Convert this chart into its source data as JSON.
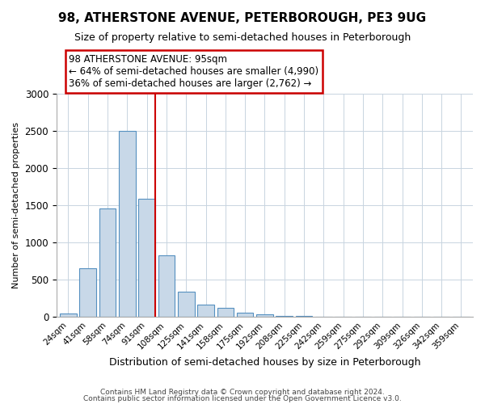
{
  "title": "98, ATHERSTONE AVENUE, PETERBOROUGH, PE3 9UG",
  "subtitle": "Size of property relative to semi-detached houses in Peterborough",
  "xlabel": "Distribution of semi-detached houses by size in Peterborough",
  "ylabel": "Number of semi-detached properties",
  "bin_labels": [
    "24sqm",
    "41sqm",
    "58sqm",
    "74sqm",
    "91sqm",
    "108sqm",
    "125sqm",
    "141sqm",
    "158sqm",
    "175sqm",
    "192sqm",
    "208sqm",
    "225sqm",
    "242sqm",
    "259sqm",
    "275sqm",
    "292sqm",
    "309sqm",
    "326sqm",
    "342sqm",
    "359sqm"
  ],
  "bin_values": [
    40,
    650,
    1450,
    2500,
    1580,
    830,
    340,
    165,
    115,
    55,
    30,
    10,
    5,
    2,
    1,
    0,
    0,
    0,
    0,
    0,
    0
  ],
  "bar_color": "#c8d8e8",
  "bar_edge_color": "#5590c0",
  "vline_color": "#cc0000",
  "annotation_title": "98 ATHERSTONE AVENUE: 95sqm",
  "annotation_line1": "← 64% of semi-detached houses are smaller (4,990)",
  "annotation_line2": "36% of semi-detached houses are larger (2,762) →",
  "annotation_box_color": "#cc0000",
  "ylim": [
    0,
    3000
  ],
  "yticks": [
    0,
    500,
    1000,
    1500,
    2000,
    2500,
    3000
  ],
  "footnote1": "Contains HM Land Registry data © Crown copyright and database right 2024.",
  "footnote2": "Contains public sector information licensed under the Open Government Licence v3.0.",
  "figsize": [
    6.0,
    5.0
  ],
  "dpi": 100
}
